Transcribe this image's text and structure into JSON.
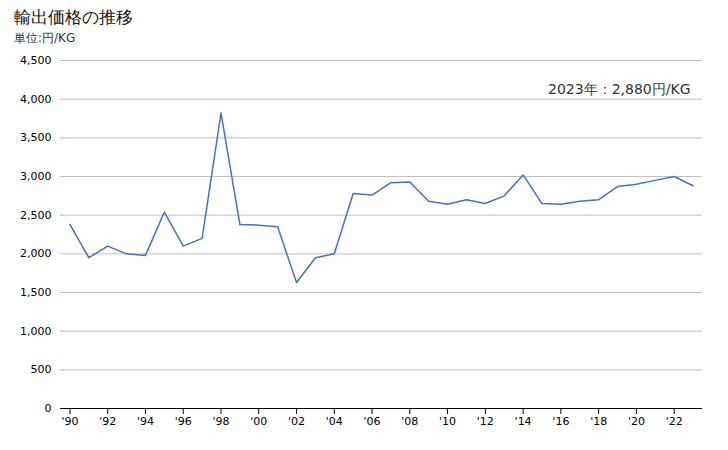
{
  "chart_data": {
    "type": "line",
    "title": "輸出価格の推移",
    "ylabel": "単位:円/KG",
    "annotation": "2023年：2,880円/KG",
    "x": [
      1990,
      1991,
      1992,
      1993,
      1994,
      1995,
      1996,
      1997,
      1998,
      1999,
      2000,
      2001,
      2002,
      2003,
      2004,
      2005,
      2006,
      2007,
      2008,
      2009,
      2010,
      2011,
      2012,
      2013,
      2014,
      2015,
      2016,
      2017,
      2018,
      2019,
      2020,
      2021,
      2022,
      2023
    ],
    "values": [
      2380,
      1950,
      2100,
      2000,
      1980,
      2540,
      2100,
      2200,
      3820,
      2380,
      2370,
      2350,
      1630,
      1950,
      2000,
      2780,
      2760,
      2920,
      2930,
      2680,
      2640,
      2700,
      2650,
      2750,
      3020,
      2650,
      2640,
      2680,
      2700,
      2870,
      2900,
      2950,
      3000,
      2880
    ],
    "color": "#4472C4",
    "xlim": [
      1989.5,
      2023.5
    ],
    "xticks": [
      {
        "value": 1990,
        "label": "'90"
      },
      {
        "value": 1992,
        "label": "'92"
      },
      {
        "value": 1994,
        "label": "'94"
      },
      {
        "value": 1996,
        "label": "'96"
      },
      {
        "value": 1998,
        "label": "'98"
      },
      {
        "value": 2000,
        "label": "'00"
      },
      {
        "value": 2002,
        "label": "'02"
      },
      {
        "value": 2004,
        "label": "'04"
      },
      {
        "value": 2006,
        "label": "'06"
      },
      {
        "value": 2008,
        "label": "'08"
      },
      {
        "value": 2010,
        "label": "'10"
      },
      {
        "value": 2012,
        "label": "'12"
      },
      {
        "value": 2014,
        "label": "'14"
      },
      {
        "value": 2016,
        "label": "'16"
      },
      {
        "value": 2018,
        "label": "'18"
      },
      {
        "value": 2020,
        "label": "'20"
      },
      {
        "value": 2022,
        "label": "'22"
      }
    ],
    "ylim": [
      0,
      4500
    ],
    "yticks": [
      0,
      500,
      {
        "value": 1000,
        "label": "1,000"
      },
      {
        "value": 1500,
        "label": "1,500"
      },
      {
        "value": 2000,
        "label": "2,000"
      },
      {
        "value": 2500,
        "label": "2,500"
      },
      {
        "value": 3000,
        "label": "3,000"
      },
      {
        "value": 3500,
        "label": "3,500"
      },
      {
        "value": 4000,
        "label": "4,000"
      },
      {
        "value": 4500,
        "label": "4,500"
      }
    ],
    "grid": "y"
  }
}
